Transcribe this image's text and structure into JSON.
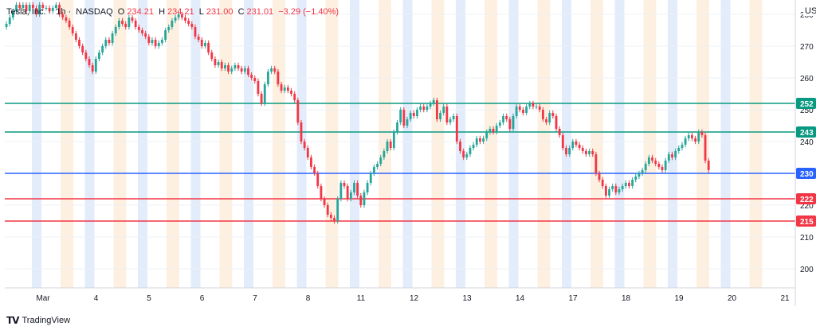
{
  "header": {
    "symbol": "Tesla, Inc.",
    "interval": "1h",
    "exchange": "NASDAQ",
    "ohlc": {
      "o_label": "O",
      "o": "234.21",
      "h_label": "H",
      "h": "234.21",
      "l_label": "L",
      "l": "231.00",
      "c_label": "C",
      "c": "231.01",
      "change": "−3.29 (−1.40%)"
    }
  },
  "currency": "USD",
  "footer": {
    "brand": "TradingView",
    "logo": "tradingview-logo-icon"
  },
  "colors": {
    "up": "#26a69a",
    "down": "#f23645",
    "support": "#f23645",
    "resistance": "#089981",
    "pivot": "#2962ff",
    "premarket_shade": "#e3ecfb",
    "afterhours_shade": "#fdf0e0",
    "grid": "#eef0f3",
    "axis_text": "#131722"
  },
  "chart_data": {
    "type": "candlestick",
    "title": "",
    "xlabel": "",
    "ylabel": "",
    "ylim": [
      194,
      283
    ],
    "grid": true,
    "y_ticks": [
      200,
      210,
      220,
      230,
      240,
      250,
      260,
      270,
      280
    ],
    "x_tick_labels": [
      "Mar",
      "4",
      "5",
      "6",
      "7",
      "8",
      "11",
      "12",
      "13",
      "14",
      "17",
      "18",
      "19",
      "20",
      "21"
    ],
    "levels": [
      {
        "label": "252",
        "value": 252,
        "kind": "resistance"
      },
      {
        "label": "243",
        "value": 243,
        "kind": "resistance"
      },
      {
        "label": "230",
        "value": 230,
        "kind": "pivot"
      },
      {
        "label": "222",
        "value": 222,
        "kind": "support"
      },
      {
        "label": "215",
        "value": 215,
        "kind": "support"
      }
    ],
    "sessions_per_day": 16,
    "days": [
      {
        "label": "Mar",
        "closes": [
          277,
          279,
          281,
          283,
          282,
          283,
          281,
          283,
          282,
          280,
          283,
          282,
          282,
          281,
          282,
          283
        ]
      },
      {
        "label": "4",
        "closes": [
          280,
          279,
          278,
          276,
          274,
          272,
          270,
          268,
          266,
          264,
          262,
          266,
          268,
          270,
          272,
          271
        ]
      },
      {
        "label": "5",
        "closes": [
          274,
          276,
          278,
          277,
          276,
          279,
          278,
          276,
          275,
          274,
          273,
          271,
          272,
          270,
          271,
          272
        ]
      },
      {
        "label": "6",
        "closes": [
          275,
          276,
          278,
          279,
          280,
          279,
          278,
          277,
          276,
          273,
          272,
          270,
          271,
          268,
          266,
          264
        ]
      },
      {
        "label": "7",
        "closes": [
          265,
          263,
          264,
          262,
          263,
          264,
          263,
          262,
          263,
          261,
          260,
          259,
          255,
          252,
          258,
          262
        ]
      },
      {
        "label": "8",
        "closes": [
          263,
          262,
          258,
          256,
          257,
          256,
          255,
          253,
          246,
          240,
          238,
          235,
          232,
          230,
          226,
          222
        ]
      },
      {
        "label": "11",
        "closes": [
          220,
          217,
          216,
          215,
          222,
          227,
          226,
          222,
          224,
          227,
          223,
          220,
          224,
          227,
          230,
          232
        ]
      },
      {
        "label": "12",
        "closes": [
          233,
          235,
          237,
          240,
          238,
          243,
          246,
          250,
          245,
          247,
          249,
          248,
          250,
          251,
          250,
          251
        ]
      },
      {
        "label": "13",
        "closes": [
          252,
          253,
          247,
          249,
          251,
          246,
          247,
          248,
          240,
          237,
          235,
          236,
          238,
          239,
          241,
          240
        ]
      },
      {
        "label": "14",
        "closes": [
          241,
          243,
          244,
          243,
          245,
          246,
          248,
          247,
          244,
          248,
          251,
          250,
          249,
          251,
          252,
          251
        ]
      },
      {
        "label": "17",
        "closes": [
          251,
          250,
          247,
          246,
          249,
          248,
          244,
          242,
          238,
          236,
          238,
          240,
          239,
          238,
          237,
          236
        ]
      },
      {
        "label": "18",
        "closes": [
          237,
          236,
          230,
          228,
          226,
          223,
          225,
          226,
          224,
          225,
          226,
          227,
          226,
          228,
          229,
          230
        ]
      },
      {
        "label": "19",
        "closes": [
          231,
          233,
          235,
          234,
          233,
          232,
          231,
          234,
          236,
          235,
          237,
          238,
          239,
          241,
          242,
          241
        ]
      },
      {
        "label": "20",
        "closes": [
          240,
          243,
          242,
          234,
          231
        ]
      }
    ]
  }
}
